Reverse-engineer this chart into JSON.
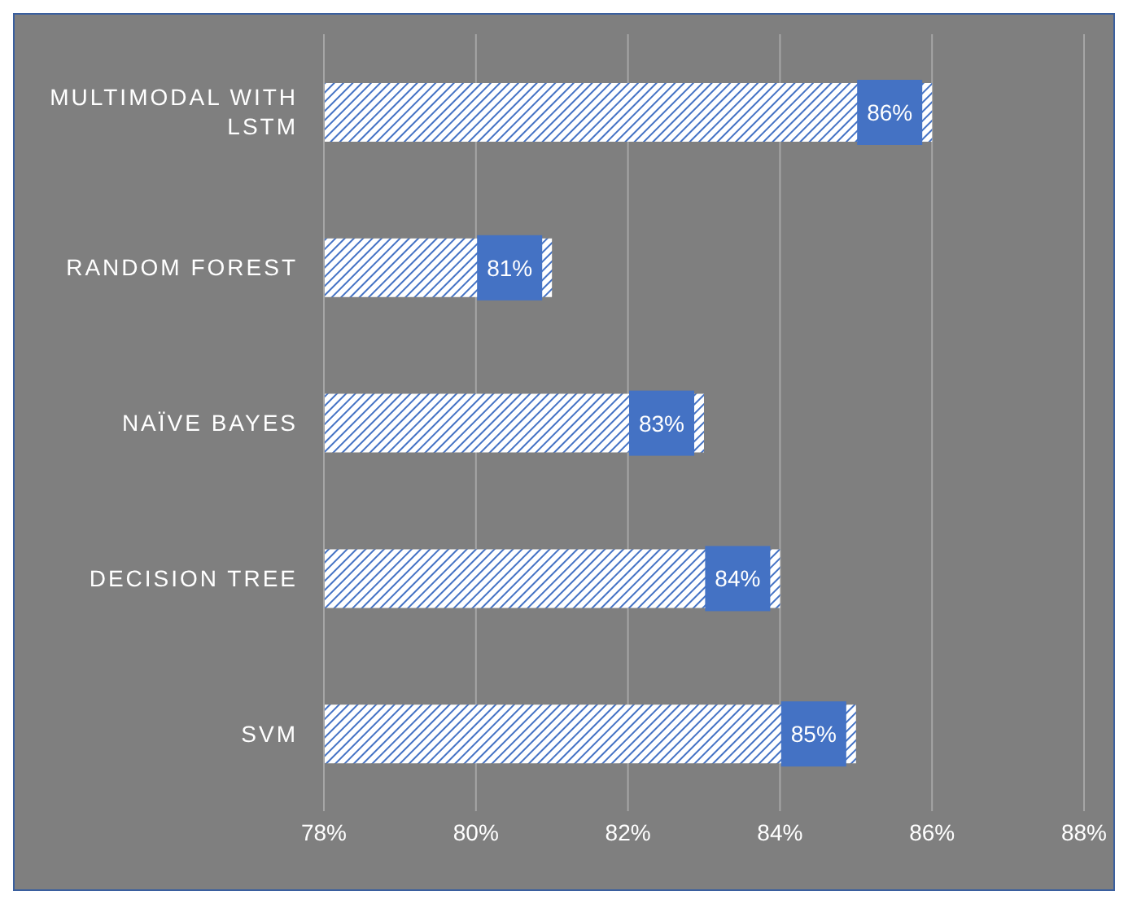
{
  "chart_data": {
    "type": "bar",
    "orientation": "horizontal",
    "categories": [
      "MULTIMODAL WITH LSTM",
      "RANDOM FOREST",
      "NAÏVE BAYES",
      "DECISION TREE",
      "SVM"
    ],
    "values": [
      86,
      81,
      83,
      84,
      85
    ],
    "value_labels": [
      "86%",
      "81%",
      "83%",
      "84%",
      "85%"
    ],
    "color": "#4472c4",
    "xlim": [
      78,
      88
    ],
    "xticks": [
      {
        "value": 78,
        "label": "78%"
      },
      {
        "value": 80,
        "label": "80%"
      },
      {
        "value": 82,
        "label": "82%"
      },
      {
        "value": 84,
        "label": "84%"
      },
      {
        "value": 86,
        "label": "86%"
      },
      {
        "value": 88,
        "label": "88%"
      }
    ],
    "grid": "x"
  }
}
